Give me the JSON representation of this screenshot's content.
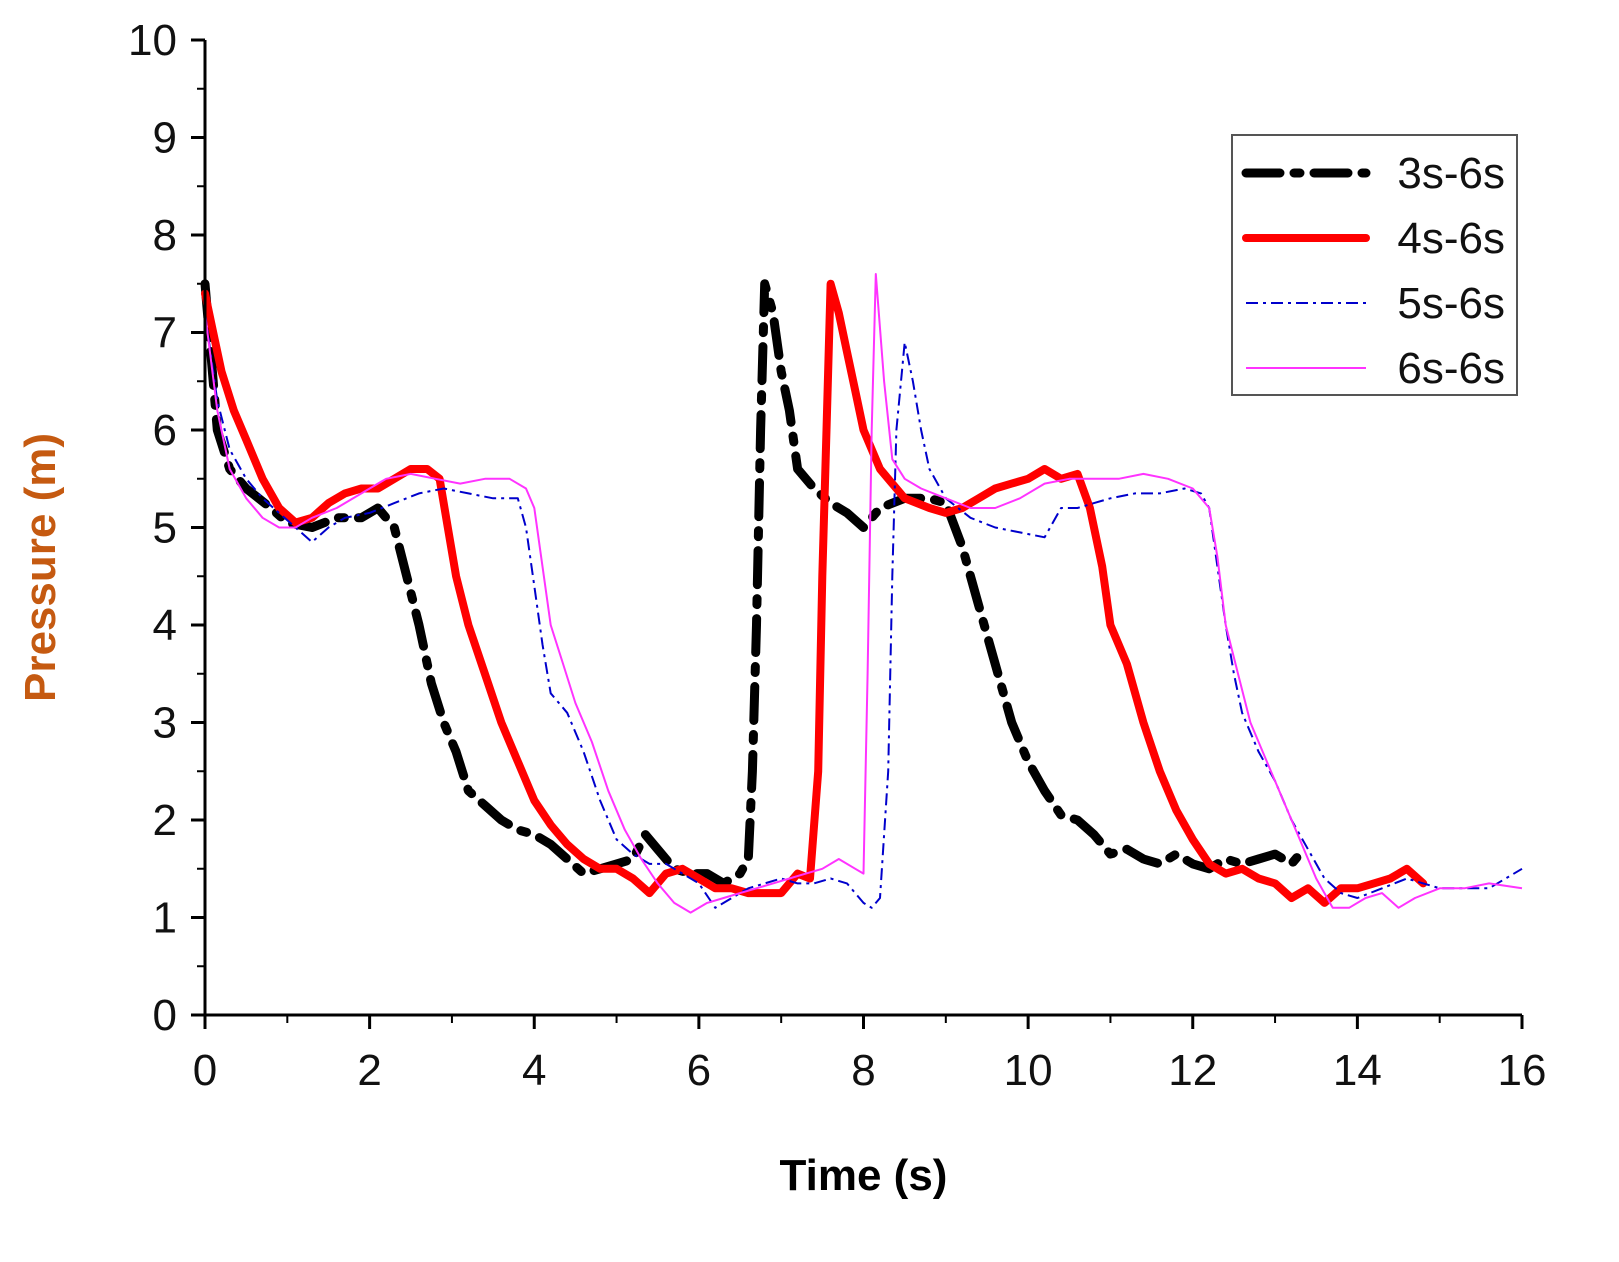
{
  "chart_data": {
    "type": "line",
    "title": "",
    "xlabel": "Time (s)",
    "ylabel": "Pressure (m)",
    "ylabel_color": "#c55a11",
    "xlim": [
      0,
      16
    ],
    "ylim": [
      0,
      10
    ],
    "xticks": [
      0,
      2,
      4,
      6,
      8,
      10,
      12,
      14,
      16
    ],
    "yticks": [
      0,
      1,
      2,
      3,
      4,
      5,
      6,
      7,
      8,
      9,
      10
    ],
    "grid": false,
    "legend_position": "top-right",
    "series": [
      {
        "name": "3s-6s",
        "color": "#000000",
        "style": "dash-dot-thick",
        "points": [
          [
            0,
            7.5
          ],
          [
            0.15,
            6.0
          ],
          [
            0.3,
            5.6
          ],
          [
            0.5,
            5.4
          ],
          [
            0.8,
            5.2
          ],
          [
            1.0,
            5.05
          ],
          [
            1.3,
            5.0
          ],
          [
            1.6,
            5.1
          ],
          [
            1.9,
            5.1
          ],
          [
            2.1,
            5.2
          ],
          [
            2.3,
            5.0
          ],
          [
            2.45,
            4.5
          ],
          [
            2.6,
            4.0
          ],
          [
            2.75,
            3.4
          ],
          [
            2.9,
            3.0
          ],
          [
            3.05,
            2.7
          ],
          [
            3.2,
            2.3
          ],
          [
            3.4,
            2.15
          ],
          [
            3.6,
            2.0
          ],
          [
            3.8,
            1.9
          ],
          [
            4.0,
            1.85
          ],
          [
            4.2,
            1.75
          ],
          [
            4.4,
            1.6
          ],
          [
            4.6,
            1.45
          ],
          [
            4.8,
            1.5
          ],
          [
            5.0,
            1.55
          ],
          [
            5.2,
            1.6
          ],
          [
            5.35,
            1.85
          ],
          [
            5.5,
            1.7
          ],
          [
            5.7,
            1.5
          ],
          [
            5.9,
            1.45
          ],
          [
            6.1,
            1.45
          ],
          [
            6.3,
            1.35
          ],
          [
            6.5,
            1.45
          ],
          [
            6.6,
            1.6
          ],
          [
            6.65,
            2.5
          ],
          [
            6.7,
            4.0
          ],
          [
            6.75,
            6.0
          ],
          [
            6.8,
            7.5
          ],
          [
            6.9,
            7.2
          ],
          [
            7.0,
            6.6
          ],
          [
            7.1,
            6.2
          ],
          [
            7.2,
            5.6
          ],
          [
            7.4,
            5.4
          ],
          [
            7.6,
            5.25
          ],
          [
            7.8,
            5.15
          ],
          [
            8.0,
            5.0
          ],
          [
            8.2,
            5.2
          ],
          [
            8.5,
            5.3
          ],
          [
            8.8,
            5.3
          ],
          [
            9.0,
            5.25
          ],
          [
            9.2,
            4.8
          ],
          [
            9.4,
            4.2
          ],
          [
            9.6,
            3.6
          ],
          [
            9.8,
            3.0
          ],
          [
            10.0,
            2.6
          ],
          [
            10.2,
            2.3
          ],
          [
            10.4,
            2.05
          ],
          [
            10.6,
            2.0
          ],
          [
            10.8,
            1.85
          ],
          [
            11.0,
            1.65
          ],
          [
            11.2,
            1.7
          ],
          [
            11.4,
            1.6
          ],
          [
            11.6,
            1.55
          ],
          [
            11.8,
            1.65
          ],
          [
            12.0,
            1.55
          ],
          [
            12.2,
            1.5
          ],
          [
            12.4,
            1.6
          ],
          [
            12.6,
            1.55
          ],
          [
            12.8,
            1.6
          ],
          [
            13.0,
            1.65
          ],
          [
            13.2,
            1.55
          ],
          [
            13.3,
            1.65
          ]
        ]
      },
      {
        "name": "4s-6s",
        "color": "#ff0000",
        "style": "solid-thick",
        "points": [
          [
            0,
            7.4
          ],
          [
            0.1,
            7.0
          ],
          [
            0.2,
            6.6
          ],
          [
            0.35,
            6.2
          ],
          [
            0.5,
            5.9
          ],
          [
            0.7,
            5.5
          ],
          [
            0.9,
            5.2
          ],
          [
            1.1,
            5.05
          ],
          [
            1.3,
            5.1
          ],
          [
            1.5,
            5.25
          ],
          [
            1.7,
            5.35
          ],
          [
            1.9,
            5.4
          ],
          [
            2.1,
            5.4
          ],
          [
            2.3,
            5.5
          ],
          [
            2.5,
            5.6
          ],
          [
            2.7,
            5.6
          ],
          [
            2.85,
            5.5
          ],
          [
            2.95,
            5.0
          ],
          [
            3.05,
            4.5
          ],
          [
            3.2,
            4.0
          ],
          [
            3.4,
            3.5
          ],
          [
            3.6,
            3.0
          ],
          [
            3.8,
            2.6
          ],
          [
            4.0,
            2.2
          ],
          [
            4.2,
            1.95
          ],
          [
            4.4,
            1.75
          ],
          [
            4.6,
            1.6
          ],
          [
            4.8,
            1.5
          ],
          [
            5.0,
            1.5
          ],
          [
            5.2,
            1.4
          ],
          [
            5.4,
            1.25
          ],
          [
            5.6,
            1.45
          ],
          [
            5.8,
            1.5
          ],
          [
            6.0,
            1.4
          ],
          [
            6.2,
            1.3
          ],
          [
            6.4,
            1.3
          ],
          [
            6.6,
            1.25
          ],
          [
            6.8,
            1.25
          ],
          [
            7.0,
            1.25
          ],
          [
            7.2,
            1.45
          ],
          [
            7.35,
            1.4
          ],
          [
            7.45,
            2.5
          ],
          [
            7.5,
            4.5
          ],
          [
            7.55,
            6.0
          ],
          [
            7.6,
            7.5
          ],
          [
            7.7,
            7.2
          ],
          [
            7.8,
            6.8
          ],
          [
            7.9,
            6.4
          ],
          [
            8.0,
            6.0
          ],
          [
            8.2,
            5.6
          ],
          [
            8.5,
            5.3
          ],
          [
            8.8,
            5.2
          ],
          [
            9.0,
            5.15
          ],
          [
            9.2,
            5.2
          ],
          [
            9.4,
            5.3
          ],
          [
            9.6,
            5.4
          ],
          [
            9.8,
            5.45
          ],
          [
            10.0,
            5.5
          ],
          [
            10.2,
            5.6
          ],
          [
            10.4,
            5.5
          ],
          [
            10.6,
            5.55
          ],
          [
            10.75,
            5.2
          ],
          [
            10.9,
            4.6
          ],
          [
            11.0,
            4.0
          ],
          [
            11.2,
            3.6
          ],
          [
            11.4,
            3.0
          ],
          [
            11.6,
            2.5
          ],
          [
            11.8,
            2.1
          ],
          [
            12.0,
            1.8
          ],
          [
            12.2,
            1.55
          ],
          [
            12.4,
            1.45
          ],
          [
            12.6,
            1.5
          ],
          [
            12.8,
            1.4
          ],
          [
            13.0,
            1.35
          ],
          [
            13.2,
            1.2
          ],
          [
            13.4,
            1.3
          ],
          [
            13.6,
            1.15
          ],
          [
            13.8,
            1.3
          ],
          [
            14.0,
            1.3
          ],
          [
            14.2,
            1.35
          ],
          [
            14.4,
            1.4
          ],
          [
            14.6,
            1.5
          ],
          [
            14.8,
            1.35
          ]
        ]
      },
      {
        "name": "5s-6s",
        "color": "#0000cc",
        "style": "dash-dot-thin",
        "points": [
          [
            0,
            7.2
          ],
          [
            0.15,
            6.3
          ],
          [
            0.3,
            5.8
          ],
          [
            0.5,
            5.5
          ],
          [
            0.7,
            5.3
          ],
          [
            0.9,
            5.15
          ],
          [
            1.1,
            5.0
          ],
          [
            1.3,
            4.85
          ],
          [
            1.5,
            5.0
          ],
          [
            1.7,
            5.1
          ],
          [
            2.0,
            5.15
          ],
          [
            2.3,
            5.25
          ],
          [
            2.6,
            5.35
          ],
          [
            2.9,
            5.4
          ],
          [
            3.2,
            5.35
          ],
          [
            3.5,
            5.3
          ],
          [
            3.8,
            5.3
          ],
          [
            3.9,
            5.0
          ],
          [
            4.0,
            4.4
          ],
          [
            4.1,
            3.8
          ],
          [
            4.2,
            3.3
          ],
          [
            4.4,
            3.1
          ],
          [
            4.6,
            2.7
          ],
          [
            4.8,
            2.2
          ],
          [
            5.0,
            1.8
          ],
          [
            5.2,
            1.65
          ],
          [
            5.4,
            1.55
          ],
          [
            5.6,
            1.55
          ],
          [
            5.8,
            1.45
          ],
          [
            6.0,
            1.35
          ],
          [
            6.2,
            1.1
          ],
          [
            6.4,
            1.2
          ],
          [
            6.6,
            1.3
          ],
          [
            6.8,
            1.35
          ],
          [
            7.0,
            1.4
          ],
          [
            7.2,
            1.35
          ],
          [
            7.4,
            1.35
          ],
          [
            7.6,
            1.4
          ],
          [
            7.8,
            1.35
          ],
          [
            8.0,
            1.15
          ],
          [
            8.1,
            1.1
          ],
          [
            8.2,
            1.2
          ],
          [
            8.3,
            2.5
          ],
          [
            8.35,
            4.5
          ],
          [
            8.4,
            6.0
          ],
          [
            8.5,
            6.9
          ],
          [
            8.6,
            6.5
          ],
          [
            8.7,
            6.0
          ],
          [
            8.8,
            5.6
          ],
          [
            9.0,
            5.3
          ],
          [
            9.3,
            5.1
          ],
          [
            9.6,
            5.0
          ],
          [
            9.9,
            4.95
          ],
          [
            10.2,
            4.9
          ],
          [
            10.4,
            5.2
          ],
          [
            10.6,
            5.2
          ],
          [
            10.8,
            5.25
          ],
          [
            11.0,
            5.3
          ],
          [
            11.3,
            5.35
          ],
          [
            11.6,
            5.35
          ],
          [
            11.9,
            5.4
          ],
          [
            12.1,
            5.35
          ],
          [
            12.2,
            5.2
          ],
          [
            12.3,
            4.6
          ],
          [
            12.4,
            4.0
          ],
          [
            12.5,
            3.5
          ],
          [
            12.6,
            3.1
          ],
          [
            12.8,
            2.7
          ],
          [
            13.0,
            2.4
          ],
          [
            13.2,
            2.0
          ],
          [
            13.4,
            1.7
          ],
          [
            13.6,
            1.4
          ],
          [
            13.8,
            1.25
          ],
          [
            14.0,
            1.2
          ],
          [
            14.3,
            1.3
          ],
          [
            14.6,
            1.4
          ],
          [
            15.0,
            1.3
          ],
          [
            15.3,
            1.3
          ],
          [
            15.6,
            1.3
          ],
          [
            16.0,
            1.5
          ]
        ]
      },
      {
        "name": "6s-6s",
        "color": "#ff33ff",
        "style": "solid-thin",
        "points": [
          [
            0,
            7.2
          ],
          [
            0.15,
            6.2
          ],
          [
            0.3,
            5.6
          ],
          [
            0.5,
            5.3
          ],
          [
            0.7,
            5.1
          ],
          [
            0.9,
            5.0
          ],
          [
            1.1,
            5.0
          ],
          [
            1.3,
            5.1
          ],
          [
            1.6,
            5.2
          ],
          [
            1.9,
            5.35
          ],
          [
            2.2,
            5.5
          ],
          [
            2.5,
            5.55
          ],
          [
            2.8,
            5.5
          ],
          [
            3.1,
            5.45
          ],
          [
            3.4,
            5.5
          ],
          [
            3.7,
            5.5
          ],
          [
            3.9,
            5.4
          ],
          [
            4.0,
            5.2
          ],
          [
            4.1,
            4.6
          ],
          [
            4.2,
            4.0
          ],
          [
            4.35,
            3.6
          ],
          [
            4.5,
            3.2
          ],
          [
            4.7,
            2.8
          ],
          [
            4.9,
            2.3
          ],
          [
            5.1,
            1.9
          ],
          [
            5.3,
            1.6
          ],
          [
            5.5,
            1.35
          ],
          [
            5.7,
            1.15
          ],
          [
            5.9,
            1.05
          ],
          [
            6.1,
            1.15
          ],
          [
            6.3,
            1.2
          ],
          [
            6.5,
            1.25
          ],
          [
            6.7,
            1.3
          ],
          [
            6.9,
            1.35
          ],
          [
            7.1,
            1.4
          ],
          [
            7.3,
            1.45
          ],
          [
            7.5,
            1.5
          ],
          [
            7.7,
            1.6
          ],
          [
            7.9,
            1.5
          ],
          [
            8.0,
            1.45
          ],
          [
            8.05,
            3.5
          ],
          [
            8.1,
            6.0
          ],
          [
            8.15,
            7.6
          ],
          [
            8.25,
            6.5
          ],
          [
            8.35,
            5.7
          ],
          [
            8.5,
            5.5
          ],
          [
            8.7,
            5.4
          ],
          [
            9.0,
            5.3
          ],
          [
            9.3,
            5.2
          ],
          [
            9.6,
            5.2
          ],
          [
            9.9,
            5.3
          ],
          [
            10.2,
            5.45
          ],
          [
            10.5,
            5.5
          ],
          [
            10.8,
            5.5
          ],
          [
            11.1,
            5.5
          ],
          [
            11.4,
            5.55
          ],
          [
            11.7,
            5.5
          ],
          [
            12.0,
            5.4
          ],
          [
            12.2,
            5.2
          ],
          [
            12.3,
            4.7
          ],
          [
            12.4,
            4.0
          ],
          [
            12.55,
            3.5
          ],
          [
            12.7,
            3.0
          ],
          [
            12.9,
            2.6
          ],
          [
            13.1,
            2.2
          ],
          [
            13.3,
            1.8
          ],
          [
            13.5,
            1.4
          ],
          [
            13.7,
            1.1
          ],
          [
            13.9,
            1.1
          ],
          [
            14.1,
            1.2
          ],
          [
            14.3,
            1.25
          ],
          [
            14.5,
            1.1
          ],
          [
            14.7,
            1.2
          ],
          [
            15.0,
            1.3
          ],
          [
            15.3,
            1.3
          ],
          [
            15.6,
            1.35
          ],
          [
            16.0,
            1.3
          ]
        ]
      }
    ]
  }
}
